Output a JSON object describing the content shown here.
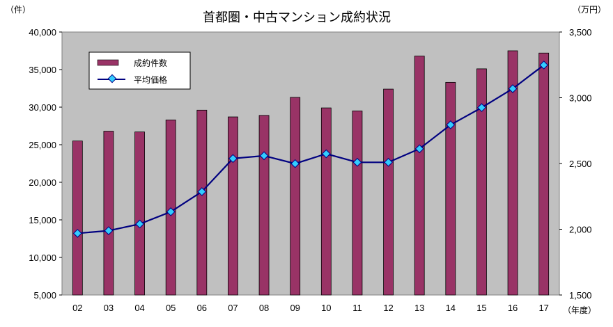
{
  "chart_data": {
    "type": "bar+line",
    "title": "首都圏・中古マンション成約状況",
    "y_left_unit": "（件）",
    "y_right_unit": "（万円）",
    "x_unit": "（年度）",
    "categories": [
      "02",
      "03",
      "04",
      "05",
      "06",
      "07",
      "08",
      "09",
      "10",
      "11",
      "12",
      "13",
      "14",
      "15",
      "16",
      "17"
    ],
    "y_left_range": [
      5000,
      40000
    ],
    "y_left_ticks": [
      "5,000",
      "10,000",
      "15,000",
      "20,000",
      "25,000",
      "30,000",
      "35,000",
      "40,000"
    ],
    "y_right_range": [
      1500,
      3500
    ],
    "y_right_ticks": [
      "1,500",
      "2,000",
      "2,500",
      "3,000",
      "3,500"
    ],
    "grid": false,
    "legend_position": "top-left",
    "series": [
      {
        "name": "成約件数",
        "type": "bar",
        "axis": "left",
        "color": "#993366",
        "values": [
          25500,
          26800,
          26700,
          28300,
          29600,
          28700,
          28900,
          31300,
          29900,
          29500,
          32400,
          36800,
          33300,
          35100,
          37500,
          37200
        ]
      },
      {
        "name": "平均価格",
        "type": "line",
        "axis": "right",
        "color": "#000080",
        "marker_color": "#33ccff",
        "values": [
          1969,
          1989,
          2040,
          2133,
          2286,
          2538,
          2559,
          2499,
          2574,
          2509,
          2509,
          2612,
          2794,
          2925,
          3069,
          3249
        ]
      }
    ]
  }
}
